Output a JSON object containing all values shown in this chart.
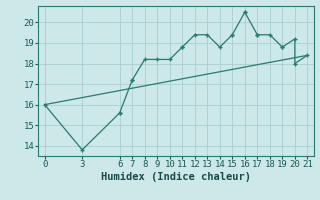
{
  "xlabel": "Humidex (Indice chaleur)",
  "bg_color": "#cce8e8",
  "line_color": "#2a7a6e",
  "grid_color": "#aacece",
  "curve_x": [
    0,
    3,
    6,
    6,
    7,
    7,
    8,
    9,
    10,
    11,
    11,
    12,
    13,
    14,
    15,
    15,
    16,
    16,
    17,
    17,
    18,
    19,
    19,
    20,
    20,
    21
  ],
  "curve_y": [
    16.0,
    13.8,
    15.6,
    15.6,
    17.2,
    17.2,
    18.2,
    18.2,
    18.2,
    18.8,
    18.8,
    19.4,
    19.4,
    18.8,
    19.4,
    19.4,
    20.5,
    20.5,
    19.4,
    19.4,
    19.4,
    18.8,
    18.8,
    19.2,
    18.0,
    18.4
  ],
  "trend_x": [
    0,
    21
  ],
  "trend_y": [
    16.0,
    18.4
  ],
  "xlim": [
    -0.5,
    21.5
  ],
  "ylim": [
    13.5,
    20.8
  ],
  "xticks": [
    0,
    3,
    6,
    7,
    8,
    9,
    10,
    11,
    12,
    13,
    14,
    15,
    16,
    17,
    18,
    19,
    20,
    21
  ],
  "yticks": [
    14,
    15,
    16,
    17,
    18,
    19,
    20
  ],
  "tick_fontsize": 6.5,
  "xlabel_fontsize": 7.5
}
